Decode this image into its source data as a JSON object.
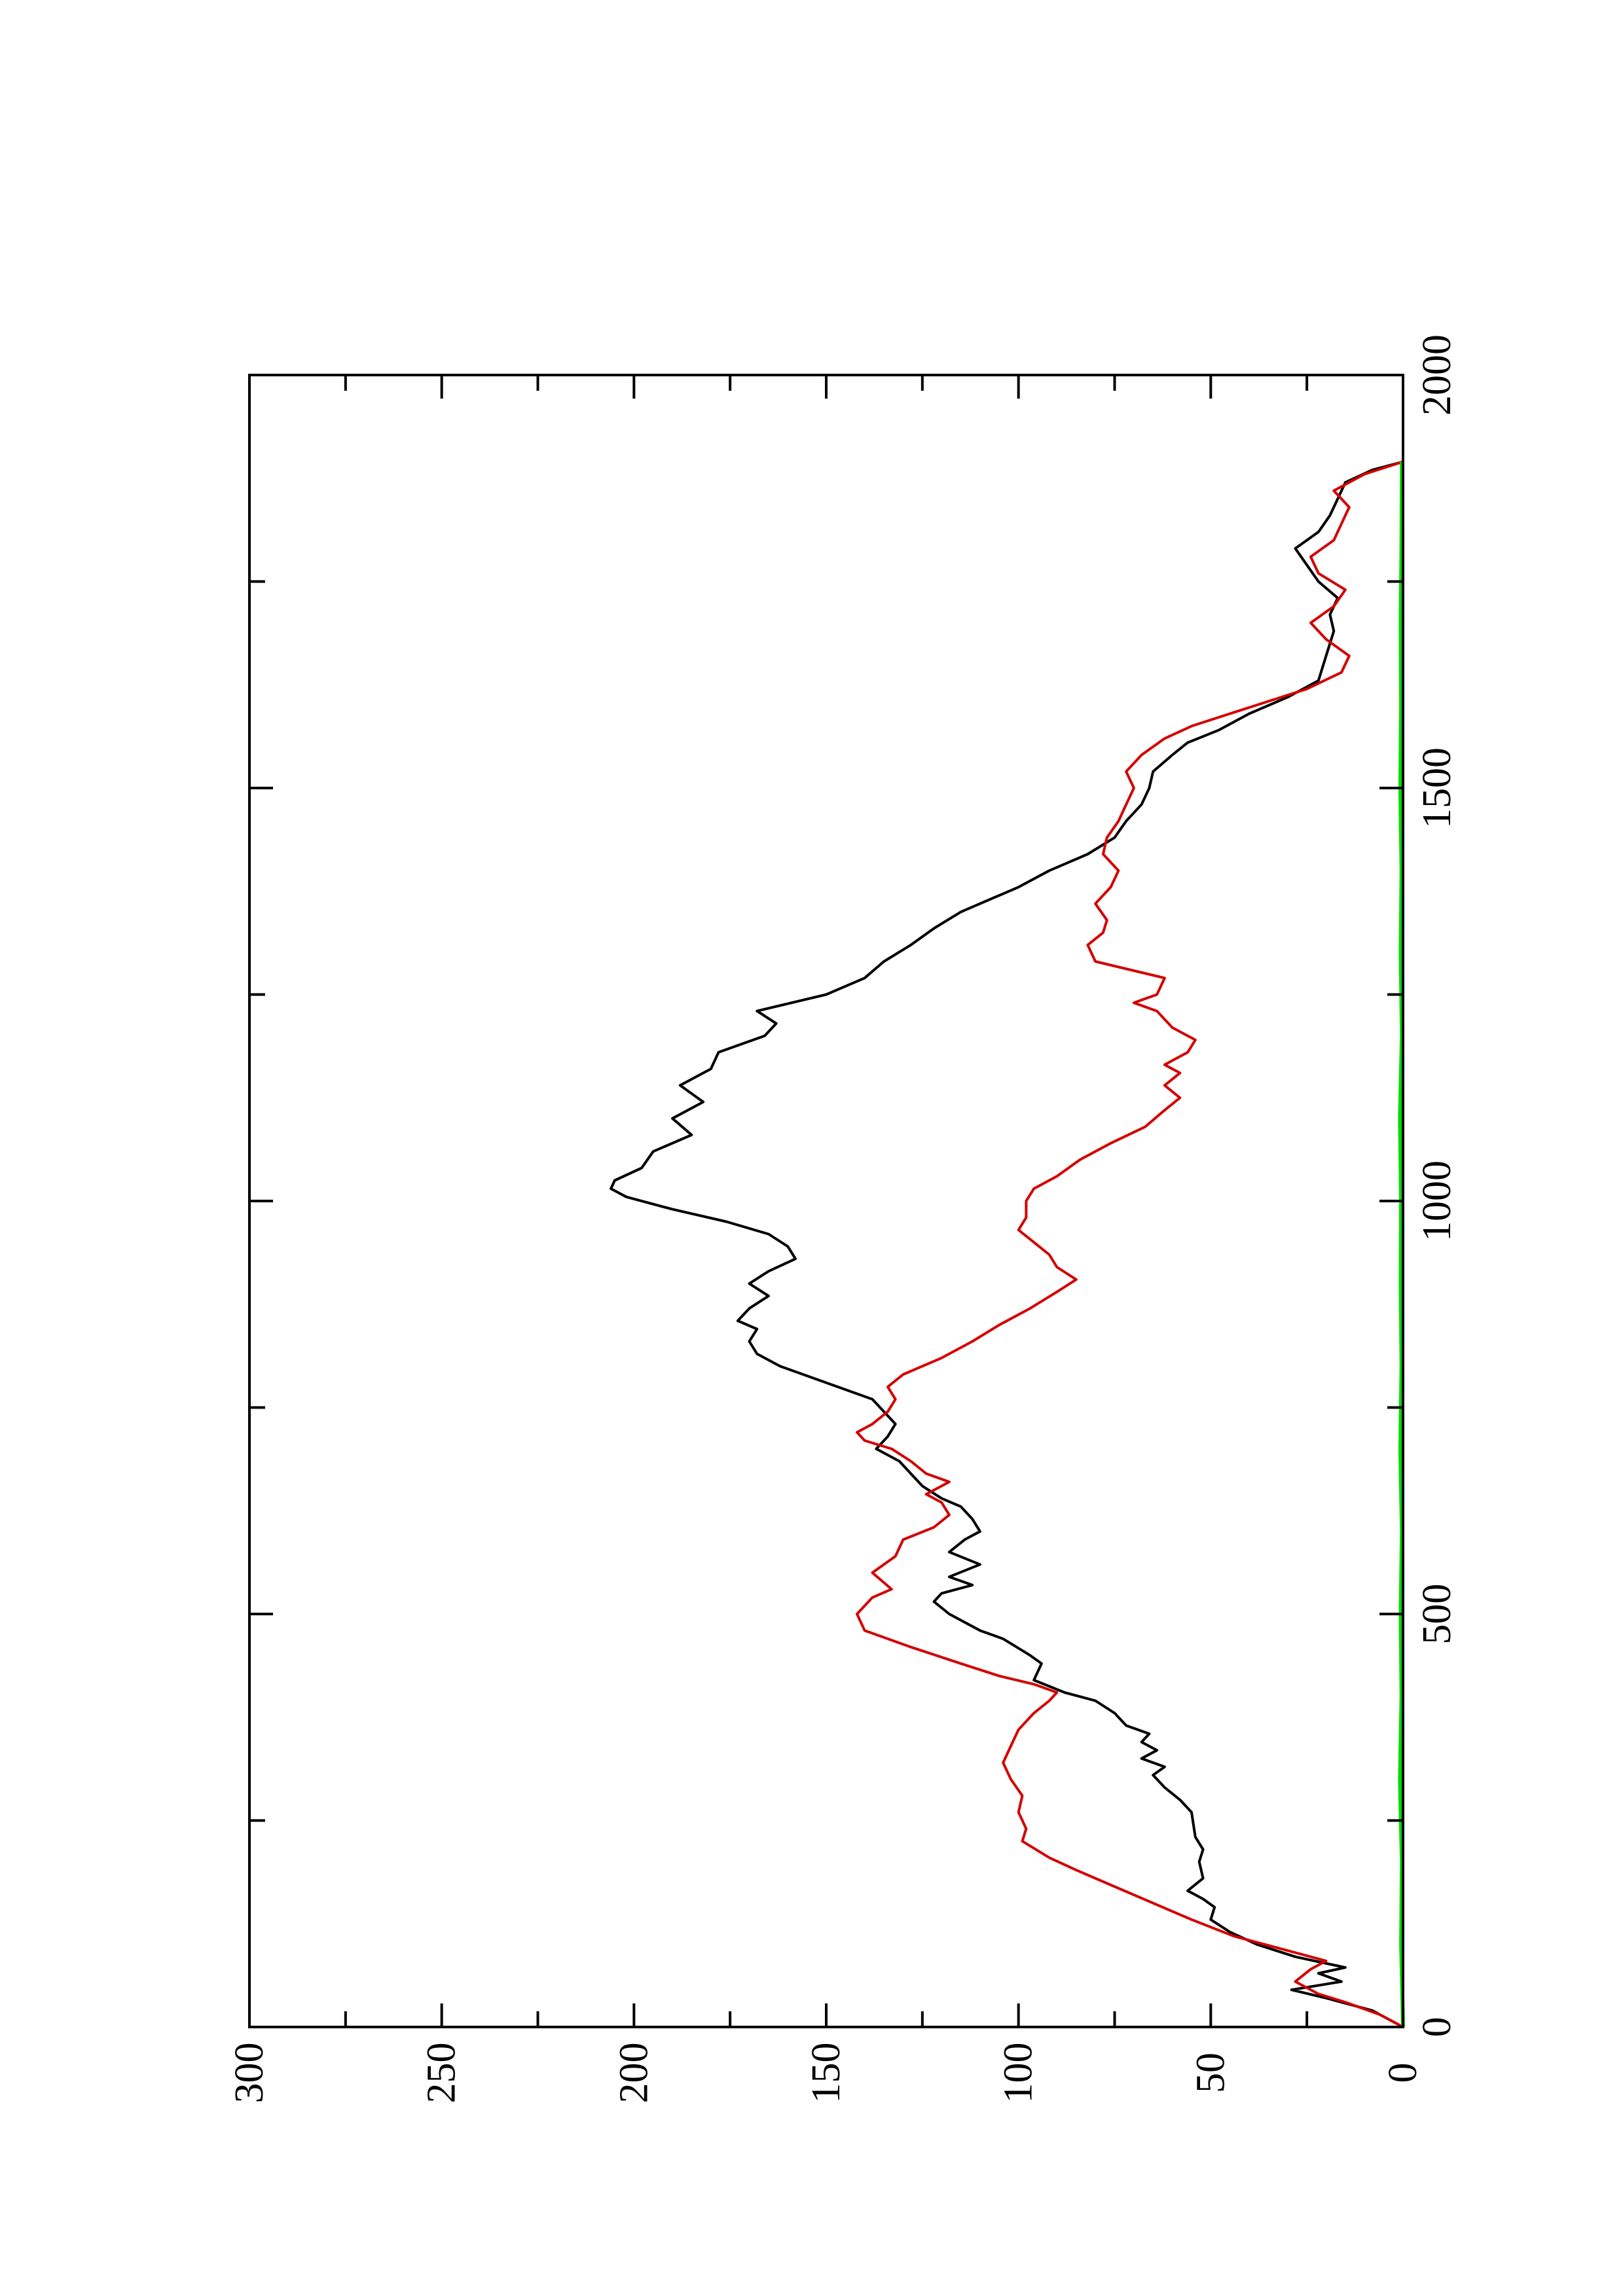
{
  "chart_data": {
    "type": "line",
    "orientation": "rotated-90-ccw",
    "title": "",
    "xlabel": "",
    "ylabel": "",
    "xlim": [
      0,
      2000
    ],
    "ylim": [
      0,
      300
    ],
    "x_ticks": [
      "0",
      "500",
      "1000",
      "1500",
      "2000"
    ],
    "y_ticks": [
      "0",
      "50",
      "100",
      "150",
      "200",
      "250",
      "300"
    ],
    "x_minor_ticks": [
      250,
      750,
      1250,
      1750
    ],
    "y_minor_ticks": [
      25,
      75,
      125,
      175,
      225,
      275
    ],
    "grid": false,
    "legend": "none",
    "series": [
      {
        "color": "#000000",
        "points": [
          [
            0,
            0
          ],
          [
            20,
            8
          ],
          [
            35,
            20
          ],
          [
            45,
            29
          ],
          [
            55,
            16
          ],
          [
            65,
            22
          ],
          [
            72,
            15
          ],
          [
            85,
            28
          ],
          [
            100,
            38
          ],
          [
            115,
            45
          ],
          [
            130,
            50
          ],
          [
            145,
            49
          ],
          [
            155,
            52
          ],
          [
            165,
            56
          ],
          [
            180,
            52
          ],
          [
            200,
            53
          ],
          [
            215,
            52
          ],
          [
            230,
            54
          ],
          [
            260,
            55
          ],
          [
            275,
            58
          ],
          [
            290,
            62
          ],
          [
            305,
            65
          ],
          [
            315,
            62
          ],
          [
            325,
            68
          ],
          [
            335,
            64
          ],
          [
            345,
            68
          ],
          [
            355,
            66
          ],
          [
            365,
            72
          ],
          [
            380,
            75
          ],
          [
            395,
            80
          ],
          [
            405,
            88
          ],
          [
            420,
            96
          ],
          [
            440,
            94
          ],
          [
            450,
            97
          ],
          [
            470,
            104
          ],
          [
            480,
            110
          ],
          [
            500,
            118
          ],
          [
            515,
            122
          ],
          [
            525,
            120
          ],
          [
            535,
            112
          ],
          [
            545,
            118
          ],
          [
            560,
            110
          ],
          [
            575,
            118
          ],
          [
            590,
            114
          ],
          [
            600,
            110
          ],
          [
            615,
            112
          ],
          [
            630,
            115
          ],
          [
            640,
            120
          ],
          [
            655,
            125
          ],
          [
            670,
            128
          ],
          [
            685,
            131
          ],
          [
            700,
            137
          ],
          [
            715,
            134
          ],
          [
            730,
            132
          ],
          [
            745,
            135
          ],
          [
            760,
            138
          ],
          [
            780,
            150
          ],
          [
            800,
            162
          ],
          [
            815,
            168
          ],
          [
            830,
            170
          ],
          [
            845,
            168
          ],
          [
            855,
            173
          ],
          [
            870,
            170
          ],
          [
            885,
            165
          ],
          [
            900,
            170
          ],
          [
            915,
            165
          ],
          [
            930,
            158
          ],
          [
            945,
            160
          ],
          [
            960,
            165
          ],
          [
            975,
            176
          ],
          [
            990,
            190
          ],
          [
            1005,
            202
          ],
          [
            1015,
            206
          ],
          [
            1025,
            205
          ],
          [
            1040,
            198
          ],
          [
            1060,
            195
          ],
          [
            1080,
            185
          ],
          [
            1100,
            190
          ],
          [
            1120,
            182
          ],
          [
            1140,
            188
          ],
          [
            1160,
            180
          ],
          [
            1180,
            178
          ],
          [
            1200,
            166
          ],
          [
            1215,
            163
          ],
          [
            1230,
            168
          ],
          [
            1250,
            150
          ],
          [
            1270,
            140
          ],
          [
            1290,
            135
          ],
          [
            1310,
            128
          ],
          [
            1330,
            122
          ],
          [
            1350,
            115
          ],
          [
            1380,
            100
          ],
          [
            1400,
            92
          ],
          [
            1420,
            82
          ],
          [
            1440,
            75
          ],
          [
            1460,
            72
          ],
          [
            1480,
            68
          ],
          [
            1500,
            66
          ],
          [
            1520,
            65
          ],
          [
            1540,
            60
          ],
          [
            1555,
            56
          ],
          [
            1570,
            48
          ],
          [
            1590,
            40
          ],
          [
            1610,
            30
          ],
          [
            1630,
            22
          ],
          [
            1660,
            20
          ],
          [
            1690,
            18
          ],
          [
            1710,
            19
          ],
          [
            1730,
            17
          ],
          [
            1750,
            22
          ],
          [
            1770,
            25
          ],
          [
            1790,
            28
          ],
          [
            1810,
            22
          ],
          [
            1830,
            19
          ],
          [
            1850,
            17
          ],
          [
            1870,
            15
          ],
          [
            1885,
            8
          ],
          [
            1895,
            0
          ]
        ]
      },
      {
        "color": "#d40000",
        "points": [
          [
            0,
            0
          ],
          [
            15,
            6
          ],
          [
            30,
            15
          ],
          [
            40,
            22
          ],
          [
            55,
            28
          ],
          [
            70,
            24
          ],
          [
            80,
            20
          ],
          [
            95,
            32
          ],
          [
            110,
            44
          ],
          [
            130,
            55
          ],
          [
            150,
            65
          ],
          [
            170,
            75
          ],
          [
            190,
            85
          ],
          [
            205,
            92
          ],
          [
            225,
            99
          ],
          [
            240,
            98
          ],
          [
            260,
            100
          ],
          [
            280,
            99
          ],
          [
            300,
            102
          ],
          [
            320,
            104
          ],
          [
            340,
            102
          ],
          [
            360,
            100
          ],
          [
            380,
            96
          ],
          [
            395,
            92
          ],
          [
            405,
            90
          ],
          [
            415,
            96
          ],
          [
            425,
            105
          ],
          [
            440,
            115
          ],
          [
            460,
            128
          ],
          [
            480,
            140
          ],
          [
            500,
            142
          ],
          [
            520,
            138
          ],
          [
            530,
            133
          ],
          [
            550,
            138
          ],
          [
            570,
            132
          ],
          [
            590,
            130
          ],
          [
            605,
            122
          ],
          [
            620,
            118
          ],
          [
            635,
            120
          ],
          [
            645,
            124
          ],
          [
            660,
            118
          ],
          [
            670,
            124
          ],
          [
            685,
            128
          ],
          [
            700,
            133
          ],
          [
            710,
            140
          ],
          [
            720,
            142
          ],
          [
            730,
            138
          ],
          [
            745,
            134
          ],
          [
            760,
            132
          ],
          [
            775,
            134
          ],
          [
            790,
            130
          ],
          [
            810,
            120
          ],
          [
            830,
            112
          ],
          [
            850,
            105
          ],
          [
            870,
            97
          ],
          [
            890,
            90
          ],
          [
            905,
            85
          ],
          [
            920,
            90
          ],
          [
            935,
            92
          ],
          [
            950,
            96
          ],
          [
            965,
            100
          ],
          [
            980,
            98
          ],
          [
            1000,
            98
          ],
          [
            1015,
            96
          ],
          [
            1030,
            90
          ],
          [
            1050,
            84
          ],
          [
            1070,
            76
          ],
          [
            1090,
            67
          ],
          [
            1110,
            62
          ],
          [
            1125,
            58
          ],
          [
            1140,
            62
          ],
          [
            1155,
            58
          ],
          [
            1165,
            62
          ],
          [
            1180,
            56
          ],
          [
            1195,
            54
          ],
          [
            1210,
            60
          ],
          [
            1230,
            64
          ],
          [
            1240,
            70
          ],
          [
            1250,
            64
          ],
          [
            1270,
            62
          ],
          [
            1290,
            80
          ],
          [
            1310,
            82
          ],
          [
            1325,
            78
          ],
          [
            1340,
            77
          ],
          [
            1360,
            80
          ],
          [
            1380,
            76
          ],
          [
            1400,
            74
          ],
          [
            1420,
            78
          ],
          [
            1440,
            77
          ],
          [
            1460,
            74
          ],
          [
            1480,
            72
          ],
          [
            1500,
            70
          ],
          [
            1520,
            72
          ],
          [
            1540,
            68
          ],
          [
            1560,
            62
          ],
          [
            1575,
            55
          ],
          [
            1590,
            45
          ],
          [
            1605,
            35
          ],
          [
            1620,
            25
          ],
          [
            1640,
            16
          ],
          [
            1660,
            14
          ],
          [
            1680,
            20
          ],
          [
            1700,
            24
          ],
          [
            1720,
            18
          ],
          [
            1740,
            15
          ],
          [
            1760,
            22
          ],
          [
            1780,
            24
          ],
          [
            1800,
            18
          ],
          [
            1820,
            16
          ],
          [
            1840,
            14
          ],
          [
            1860,
            18
          ],
          [
            1880,
            10
          ],
          [
            1895,
            0
          ]
        ]
      },
      {
        "color": "#00dd00",
        "points": [
          [
            0,
            0
          ],
          [
            100,
            0.5
          ],
          [
            200,
            0.3
          ],
          [
            300,
            0.8
          ],
          [
            400,
            0.4
          ],
          [
            500,
            0.6
          ],
          [
            600,
            0.3
          ],
          [
            700,
            0.7
          ],
          [
            800,
            0.4
          ],
          [
            900,
            0.6
          ],
          [
            1000,
            0.5
          ],
          [
            1100,
            0.8
          ],
          [
            1200,
            0.3
          ],
          [
            1300,
            0.6
          ],
          [
            1400,
            0.4
          ],
          [
            1500,
            0.7
          ],
          [
            1600,
            0.5
          ],
          [
            1700,
            0.6
          ],
          [
            1800,
            0.4
          ],
          [
            1895,
            0.3
          ]
        ]
      }
    ]
  }
}
